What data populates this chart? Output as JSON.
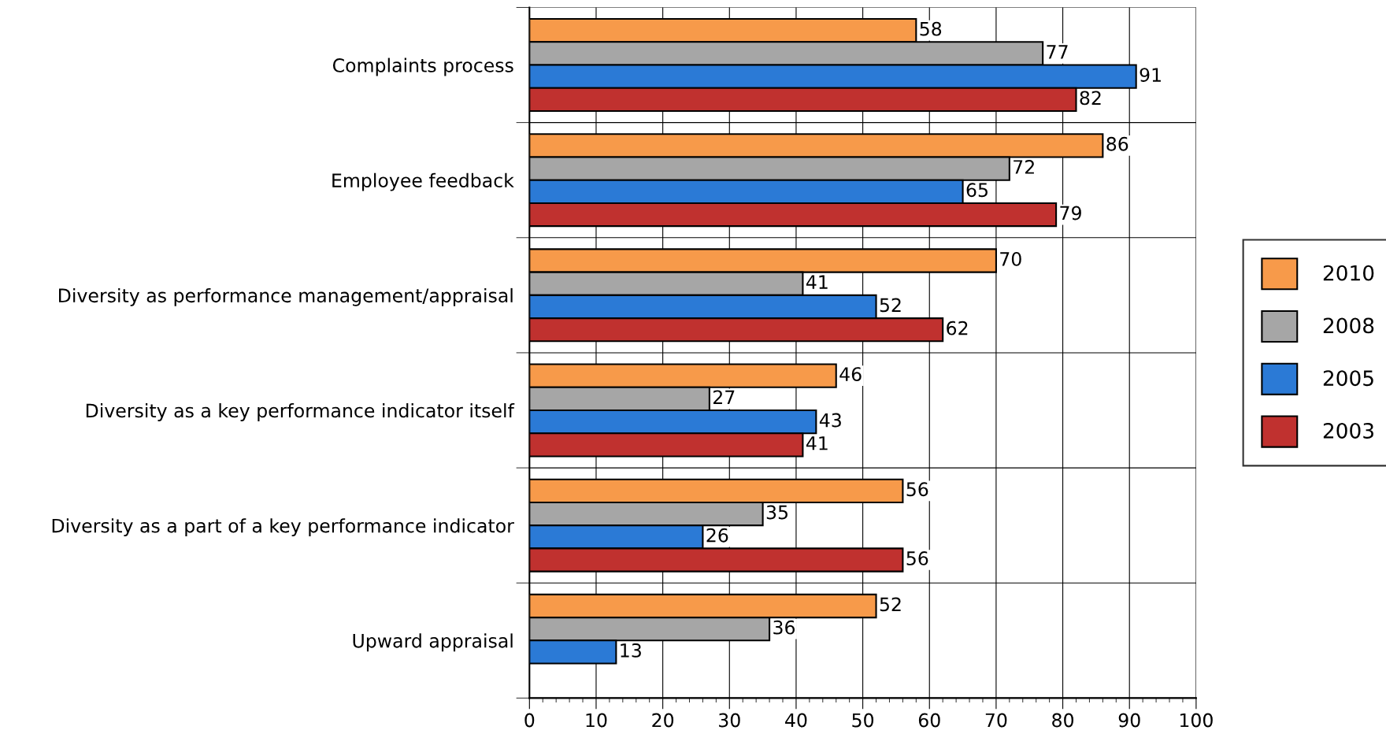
{
  "chart_data": {
    "type": "bar",
    "orientation": "horizontal",
    "categories": [
      "Complaints process",
      "Employee feedback",
      "Diversity as performance management/appraisal",
      "Diversity as a key performance indicator itself",
      "Diversity as a part of a key performance indicator",
      "Upward appraisal"
    ],
    "series": [
      {
        "name": "2010",
        "color": "#f79a4a",
        "values": [
          58,
          86,
          70,
          46,
          56,
          52
        ]
      },
      {
        "name": "2008",
        "color": "#a6a6a6",
        "values": [
          77,
          72,
          41,
          27,
          35,
          36
        ]
      },
      {
        "name": "2005",
        "color": "#2b7ad6",
        "values": [
          91,
          65,
          52,
          43,
          26,
          13
        ]
      },
      {
        "name": "2003",
        "color": "#c0312f",
        "values": [
          82,
          79,
          62,
          41,
          56,
          null
        ]
      }
    ],
    "xlim": [
      0,
      100
    ],
    "xticks": [
      0,
      10,
      20,
      30,
      40,
      50,
      60,
      70,
      80,
      90,
      100
    ],
    "grid": true,
    "legend": "right",
    "data_labels": true
  }
}
